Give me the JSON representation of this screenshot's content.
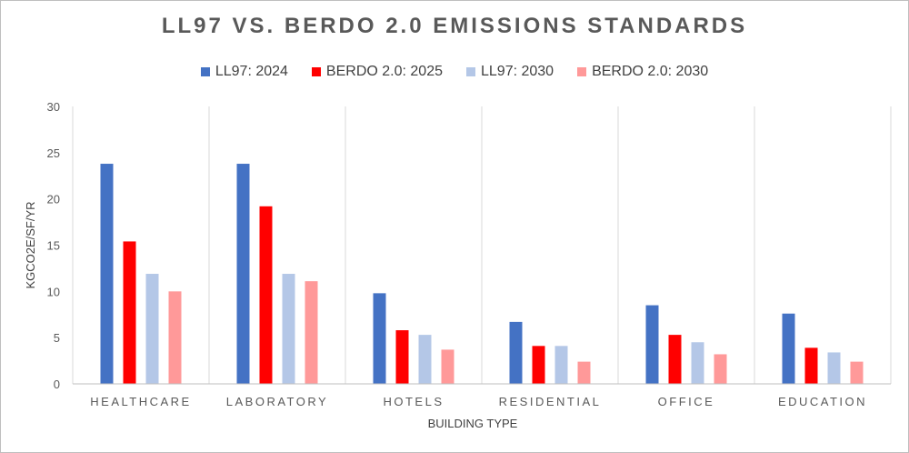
{
  "chart_data": {
    "type": "bar",
    "title": "LL97 VS. BERDO 2.0 EMISSIONS STANDARDS",
    "xlabel": "BUILDING TYPE",
    "ylabel": "KGCO2E/SF/YR",
    "ylim": [
      0,
      30
    ],
    "yticks": [
      "0",
      "5",
      "10",
      "15",
      "20",
      "25",
      "30"
    ],
    "grid": "vertical separators between categories",
    "legend_position": "top",
    "categories": [
      "HEALTHCARE",
      "LABORATORY",
      "HOTELS",
      "RESIDENTIAL",
      "OFFICE",
      "EDUCATION"
    ],
    "series": [
      {
        "name": "LL97: 2024",
        "color": "#4472C4",
        "values": [
          23.8,
          23.8,
          9.8,
          6.7,
          8.5,
          7.6
        ]
      },
      {
        "name": "BERDO 2.0: 2025",
        "color": "#FF0000",
        "values": [
          15.4,
          19.2,
          5.8,
          4.1,
          5.3,
          3.9
        ]
      },
      {
        "name": "LL97: 2030",
        "color": "#B4C7E7",
        "values": [
          11.9,
          11.9,
          5.3,
          4.1,
          4.5,
          3.4
        ]
      },
      {
        "name": "BERDO 2.0: 2030",
        "color": "#FF9999",
        "values": [
          10.0,
          11.1,
          3.7,
          2.4,
          3.2,
          2.4
        ]
      }
    ]
  }
}
